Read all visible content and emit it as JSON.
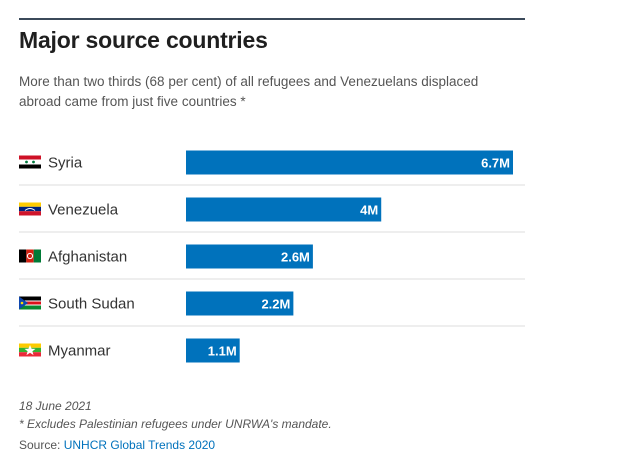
{
  "header": {
    "title": "Major source countries",
    "subtitle": "More than two thirds (68 per cent) of all refugees and Venezuelans displaced abroad came from just five countries *"
  },
  "chart_data": {
    "type": "bar",
    "orientation": "horizontal",
    "unit": "M",
    "categories": [
      "Syria",
      "Venezuela",
      "Afghanistan",
      "South Sudan",
      "Myanmar"
    ],
    "values": [
      6.7,
      4.0,
      2.6,
      2.2,
      1.1
    ],
    "value_labels": [
      "6.7M",
      "4M",
      "2.6M",
      "2.2M",
      "1.1M"
    ],
    "flag_icons": [
      "syria-flag-icon",
      "venezuela-flag-icon",
      "afghanistan-flag-icon",
      "south-sudan-flag-icon",
      "myanmar-flag-icon"
    ],
    "xlim": [
      0,
      6.7
    ],
    "bar_color": "#0072bc",
    "label_color": "#ffffff",
    "gridlines": true
  },
  "footer": {
    "date": "18 June 2021",
    "note": "* Excludes Palestinian refugees under UNRWA's mandate.",
    "source_prefix": "Source: ",
    "source_link": "UNHCR Global Trends 2020"
  }
}
